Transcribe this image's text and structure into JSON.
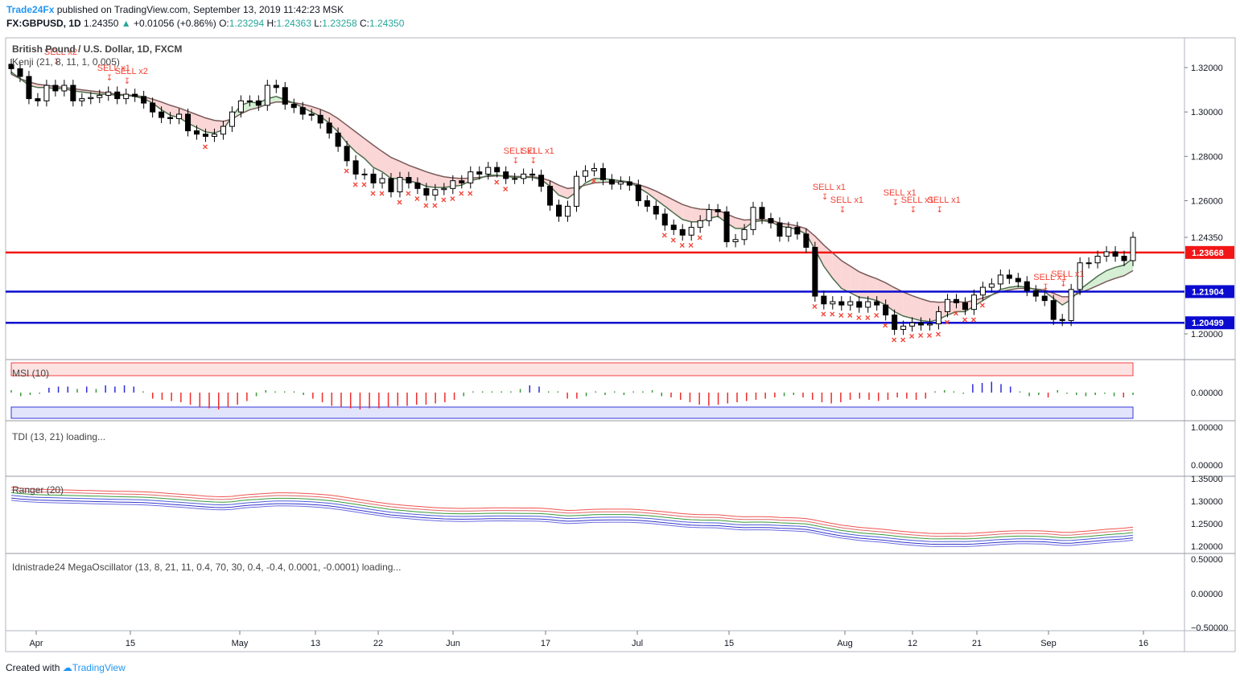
{
  "header": {
    "author": "Trade24Fx",
    "published": "published on TradingView.com, September 13, 2019 11:42:23 MSK",
    "symbol": "FX:GBPUSD, 1D",
    "last": "1.24350",
    "change": "+0.01056 (+0.86%)",
    "o_label": "O:",
    "o": "1.23294",
    "h_label": "H:",
    "h": "1.24363",
    "l_label": "L:",
    "l": "1.23258",
    "c_label": "C:",
    "c": "1.24350"
  },
  "colors": {
    "bull": "#ffffff",
    "bear": "#000000",
    "sell": "#f44336",
    "red_level": "#f21616",
    "blue_level": "#0b0bd0",
    "cloud_bear": "#fbd6d6",
    "cloud_bull": "#d5efd5",
    "grid": "#cfd2d8",
    "accent": "#2196f3"
  },
  "footer": {
    "created": "Created with",
    "brand": "TradingView"
  },
  "chart_data": [
    {
      "type": "candlestick",
      "title": "British Pound / U.S. Dollar, 1D, FXCM",
      "indicator_label": "Kenji (21, 8, 11, 1, 0.005)",
      "y_range": [
        1.19,
        1.33
      ],
      "y_ticks": [
        "1.32000",
        "1.30000",
        "1.28000",
        "1.26000",
        "1.24350",
        "1.20000"
      ],
      "x_ticks": [
        "Apr",
        "15",
        "May",
        "13",
        "22",
        "Jun",
        "17",
        "Jul",
        "15",
        "Aug",
        "12",
        "21",
        "Sep",
        "16"
      ],
      "horizontal_levels": [
        {
          "value": 1.23668,
          "label": "1.23668",
          "color": "red"
        },
        {
          "value": 1.21904,
          "label": "1.21904",
          "color": "blue"
        },
        {
          "value": 1.20499,
          "label": "1.20499",
          "color": "blue"
        }
      ],
      "last_price_label": "1.24350",
      "sell_labels": [
        "SELL x2",
        "SELL x1",
        "SELL x2",
        "SELL x1",
        "SELL x1",
        "SELL x1",
        "SELL x1",
        "SELL x1",
        "SELL x1",
        "SELL x1",
        "SELL x1",
        "SELL x1"
      ],
      "closes": [
        1.3195,
        1.316,
        1.306,
        1.305,
        1.312,
        1.3095,
        1.312,
        1.305,
        1.306,
        1.3065,
        1.3075,
        1.309,
        1.306,
        1.308,
        1.307,
        1.304,
        1.3,
        1.2975,
        1.297,
        1.299,
        1.2915,
        1.29,
        1.289,
        1.29,
        1.2935,
        1.3,
        1.305,
        1.305,
        1.303,
        1.312,
        1.311,
        1.3035,
        1.302,
        1.299,
        1.2985,
        1.295,
        1.2905,
        1.2845,
        1.278,
        1.272,
        1.272,
        1.268,
        1.27,
        1.264,
        1.2705,
        1.268,
        1.2655,
        1.2625,
        1.265,
        1.2655,
        1.269,
        1.268,
        1.273,
        1.272,
        1.275,
        1.273,
        1.27,
        1.27,
        1.272,
        1.2715,
        1.2665,
        1.258,
        1.253,
        1.2575,
        1.271,
        1.2735,
        1.2745,
        1.2695,
        1.2675,
        1.2685,
        1.267,
        1.26,
        1.2575,
        1.254,
        1.249,
        1.247,
        1.2445,
        1.248,
        1.251,
        1.256,
        1.255,
        1.2415,
        1.2425,
        1.247,
        1.257,
        1.252,
        1.25,
        1.244,
        1.248,
        1.245,
        1.239,
        1.217,
        1.2135,
        1.2145,
        1.213,
        1.2145,
        1.212,
        1.2145,
        1.213,
        1.2085,
        1.202,
        1.2035,
        1.205,
        1.204,
        1.2045,
        1.21,
        1.2155,
        1.214,
        1.211,
        1.2175,
        1.221,
        1.2225,
        1.2265,
        1.225,
        1.2235,
        1.2195,
        1.217,
        1.215,
        1.2065,
        1.206,
        1.22,
        1.232,
        1.232,
        1.235,
        1.237,
        1.235,
        1.233,
        1.2435
      ],
      "kenji_fast": [
        1.318,
        1.315,
        1.312,
        1.311,
        1.311,
        1.3105,
        1.3105,
        1.3095,
        1.309,
        1.3085,
        1.308,
        1.308,
        1.3075,
        1.3075,
        1.307,
        1.306,
        1.304,
        1.301,
        1.2985,
        1.2975,
        1.295,
        1.293,
        1.291,
        1.2905,
        1.292,
        1.298,
        1.303,
        1.3045,
        1.304,
        1.306,
        1.307,
        1.3055,
        1.304,
        1.302,
        1.3,
        1.298,
        1.295,
        1.291,
        1.286,
        1.282,
        1.279,
        1.275,
        1.273,
        1.27,
        1.27,
        1.269,
        1.268,
        1.2665,
        1.266,
        1.266,
        1.2665,
        1.267,
        1.269,
        1.27,
        1.2715,
        1.2715,
        1.271,
        1.2705,
        1.2705,
        1.2705,
        1.2695,
        1.2665,
        1.2625,
        1.261,
        1.264,
        1.268,
        1.27,
        1.27,
        1.2695,
        1.269,
        1.2685,
        1.266,
        1.2635,
        1.2605,
        1.2575,
        1.2545,
        1.2515,
        1.2505,
        1.2505,
        1.252,
        1.253,
        1.25,
        1.2475,
        1.2475,
        1.2505,
        1.251,
        1.2505,
        1.2485,
        1.248,
        1.247,
        1.245,
        1.238,
        1.2305,
        1.225,
        1.2205,
        1.2185,
        1.2165,
        1.216,
        1.215,
        1.213,
        1.21,
        1.208,
        1.207,
        1.206,
        1.2055,
        1.2065,
        1.2085,
        1.21,
        1.21,
        1.2125,
        1.215,
        1.2175,
        1.22,
        1.221,
        1.2215,
        1.221,
        1.22,
        1.219,
        1.216,
        1.213,
        1.2155,
        1.22,
        1.223,
        1.226,
        1.2285,
        1.23,
        1.231,
        1.234
      ],
      "kenji_slow": [
        1.317,
        1.315,
        1.3135,
        1.3125,
        1.312,
        1.3115,
        1.311,
        1.3105,
        1.31,
        1.3095,
        1.309,
        1.3085,
        1.308,
        1.3077,
        1.3074,
        1.3068,
        1.3058,
        1.3045,
        1.303,
        1.3018,
        1.3003,
        1.2988,
        1.2973,
        1.2962,
        1.2958,
        1.2968,
        1.2992,
        1.301,
        1.302,
        1.3035,
        1.3045,
        1.3045,
        1.3042,
        1.3035,
        1.3025,
        1.3012,
        1.2995,
        1.297,
        1.294,
        1.291,
        1.288,
        1.285,
        1.2822,
        1.2795,
        1.2778,
        1.276,
        1.2745,
        1.273,
        1.2718,
        1.2708,
        1.2703,
        1.27,
        1.2702,
        1.2705,
        1.271,
        1.2712,
        1.2712,
        1.271,
        1.2709,
        1.2708,
        1.2703,
        1.269,
        1.267,
        1.2655,
        1.266,
        1.267,
        1.268,
        1.2683,
        1.2684,
        1.2684,
        1.2683,
        1.2673,
        1.266,
        1.2643,
        1.2623,
        1.2603,
        1.2583,
        1.257,
        1.2562,
        1.256,
        1.2558,
        1.254,
        1.2523,
        1.2513,
        1.2515,
        1.2515,
        1.2512,
        1.25,
        1.2494,
        1.2486,
        1.2474,
        1.244,
        1.24,
        1.2365,
        1.233,
        1.2305,
        1.228,
        1.2263,
        1.2248,
        1.223,
        1.2208,
        1.2188,
        1.2172,
        1.2158,
        1.2146,
        1.2142,
        1.2144,
        1.2145,
        1.2143,
        1.215,
        1.2162,
        1.2175,
        1.219,
        1.2198,
        1.2205,
        1.2205,
        1.2202,
        1.2198,
        1.2183,
        1.2167,
        1.2168,
        1.2185,
        1.22,
        1.2218,
        1.2236,
        1.225,
        1.2262,
        1.2285
      ]
    },
    {
      "type": "bar",
      "title": "MSI (10)",
      "y_ticks": [
        "0.00000"
      ],
      "values": [
        0.2,
        -0.3,
        -0.2,
        -0.1,
        0.4,
        0.5,
        0.5,
        0.3,
        0.5,
        0.3,
        0.6,
        0.5,
        0.6,
        0.5,
        0,
        -0.5,
        -0.6,
        -0.7,
        -0.8,
        -1.0,
        -1.2,
        -1.3,
        -1.4,
        -1.2,
        -1.0,
        -0.7,
        -0.3,
        0.2,
        0.1,
        0.1,
        0.1,
        -0.2,
        -0.5,
        -0.8,
        -1.1,
        -1.2,
        -1.3,
        -1.4,
        -1.3,
        -1.3,
        -1.2,
        -1.1,
        -1.1,
        -1.0,
        -1.0,
        -0.9,
        -0.8,
        -0.6,
        -0.3,
        0.1,
        0.1,
        0.1,
        0.1,
        0.1,
        0.3,
        0.6,
        0.5,
        0.1,
        0,
        -0.5,
        -0.5,
        -0.3,
        0.1,
        -0.2,
        0.1,
        -0.2,
        0.1,
        0.1,
        0.2,
        -0.3,
        -0.4,
        -0.6,
        -0.8,
        -1.0,
        -1.1,
        -1.0,
        -0.9,
        -0.8,
        -0.7,
        -0.6,
        -0.5,
        -0.4,
        -0.3,
        -0.2,
        -0.4,
        -0.6,
        -0.8,
        -0.9,
        -0.8,
        -0.6,
        -0.5,
        -0.6,
        -0.7,
        -0.6,
        -0.4,
        -0.5,
        -0.6,
        -0.5,
        0.1,
        0.2,
        0.1,
        -0.1,
        0.7,
        0.8,
        0.9,
        0.7,
        0.5,
        0.1,
        -0.3,
        -0.2,
        -0.4,
        0.2,
        -0.1,
        -0.2,
        -0.3,
        -0.2,
        -0.1,
        -0.3,
        -0.4,
        -0.2
      ]
    },
    {
      "type": "line",
      "title": "TDI (13, 21) loading...",
      "y_ticks": [
        "1.00000",
        "0.00000"
      ]
    },
    {
      "type": "line",
      "title": "Ranger (20)",
      "y_range": [
        1.19,
        1.36
      ],
      "y_ticks": [
        "1.35000",
        "1.30000",
        "1.25000",
        "1.20000"
      ]
    },
    {
      "type": "line",
      "title": "Idnistrade24 MegaOscillator (13, 8, 21, 11, 0.4, 70, 30, 0.4, -0.4, 0.0001, -0.0001) loading...",
      "y_ticks": [
        "0.50000",
        "0.00000",
        "−0.50000"
      ]
    }
  ]
}
